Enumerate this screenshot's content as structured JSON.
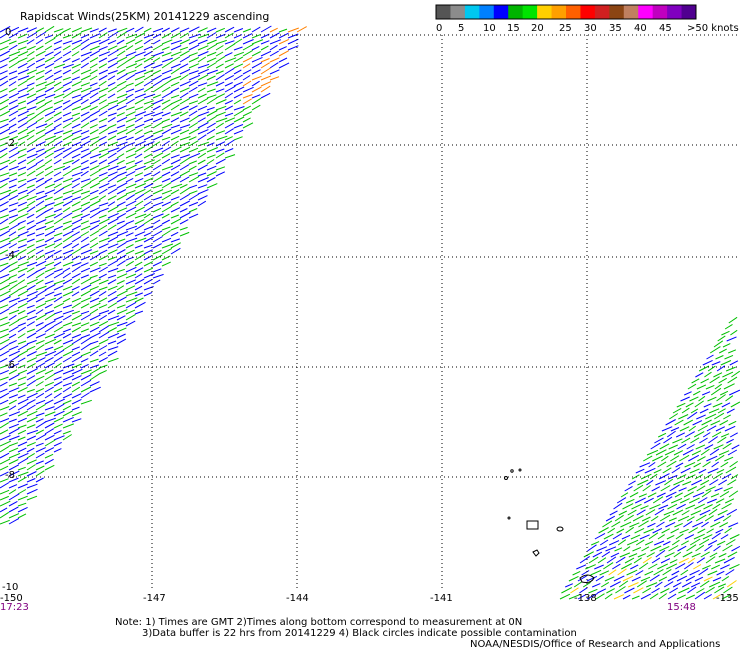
{
  "title": "Rapidscat Winds(25KM) 20141229 ascending",
  "legend": {
    "units": "knots",
    "ticks": [
      "0",
      "5",
      "10",
      "15",
      "20",
      "25",
      "30",
      "35",
      "40",
      "45",
      ">50 knots"
    ],
    "colors": [
      "#555555",
      "#8c8c8c",
      "#00c8f0",
      "#0080ff",
      "#0000ff",
      "#00b400",
      "#00e400",
      "#ffd000",
      "#ffa000",
      "#ff6000",
      "#ff0000",
      "#d02020",
      "#8b4513",
      "#c08060",
      "#ff00ff",
      "#c000c0",
      "#8000c0",
      "#500090"
    ]
  },
  "map": {
    "lon_labels": [
      "-150",
      "-147",
      "-144",
      "-141",
      "-138",
      "-135"
    ],
    "lat_labels": [
      "0",
      "-2",
      "-4",
      "-6",
      "-8",
      "-10"
    ],
    "grid": "dotted",
    "swath_times": {
      "left": "17:23",
      "right": "15:48"
    }
  },
  "notes": {
    "line1": "Note: 1) Times are GMT 2)Times along bottom correspond to measurement at 0N",
    "line2": "3)Data buffer is 22 hrs from 20141229 4) Black circles indicate possible contamination",
    "credit": "NOAA/NESDIS/Office of Research and Applications"
  },
  "wind_field": {
    "low_speed_color": "#0000ff",
    "mid_speed_color": "#00c000",
    "high_speed_color": "#ff8000"
  }
}
